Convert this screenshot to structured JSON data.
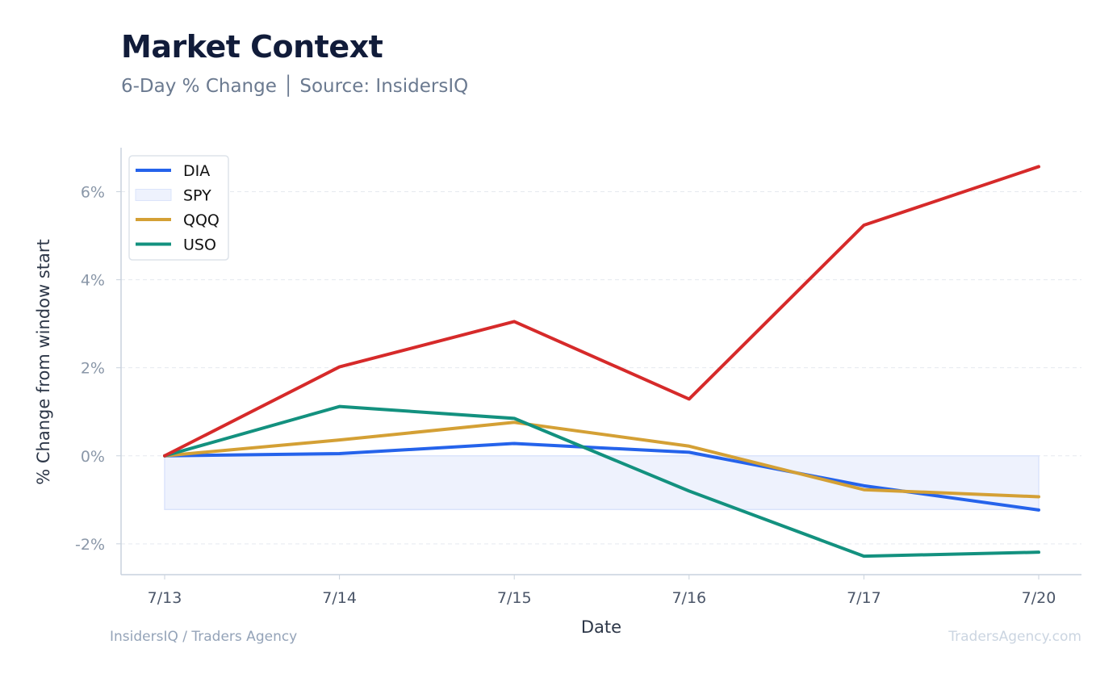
{
  "header": {
    "title": "Market Context",
    "subtitle": "6-Day % Change │ Source: InsidersIQ"
  },
  "footer": {
    "left": "InsidersIQ / Traders Agency",
    "right": "TradersAgency.com"
  },
  "colors": {
    "DIA": "#2563eb",
    "SPY_fill": "#eef2fd",
    "SPY_edge": "#dbe4fb",
    "QQQ": "#d4a035",
    "USO": "#13917f",
    "extra": "#d62a2a",
    "grid": "#e5e9ef",
    "axis": "#c9d2dd",
    "tick_text": "#8a97a8",
    "axis_title": "#2d3748"
  },
  "chart_data": {
    "type": "line",
    "xlabel": "Date",
    "ylabel": "% Change from window start",
    "categories": [
      "7/13",
      "7/14",
      "7/15",
      "7/16",
      "7/17",
      "7/20"
    ],
    "ylim": [
      -2.7,
      7.0
    ],
    "yticks": [
      -2,
      0,
      2,
      4,
      6
    ],
    "ytick_labels": [
      "-2%",
      "0%",
      "2%",
      "4%",
      "6%"
    ],
    "grid": true,
    "legend_position": "top-left",
    "series": [
      {
        "name": "DIA",
        "style": "line",
        "values": [
          0.0,
          0.05,
          0.28,
          0.08,
          -0.68,
          -1.23
        ]
      },
      {
        "name": "SPY",
        "style": "band",
        "values": [
          -1.22,
          -1.22,
          -1.22,
          -1.22,
          -1.22,
          -1.22
        ]
      },
      {
        "name": "QQQ",
        "style": "line",
        "values": [
          0.0,
          0.36,
          0.76,
          0.22,
          -0.77,
          -0.93
        ]
      },
      {
        "name": "USO",
        "style": "line",
        "values": [
          0.0,
          1.12,
          0.85,
          -0.8,
          -2.28,
          -2.19
        ]
      },
      {
        "style": "line",
        "values": [
          0.0,
          2.02,
          3.05,
          1.29,
          5.24,
          6.57
        ]
      }
    ]
  }
}
